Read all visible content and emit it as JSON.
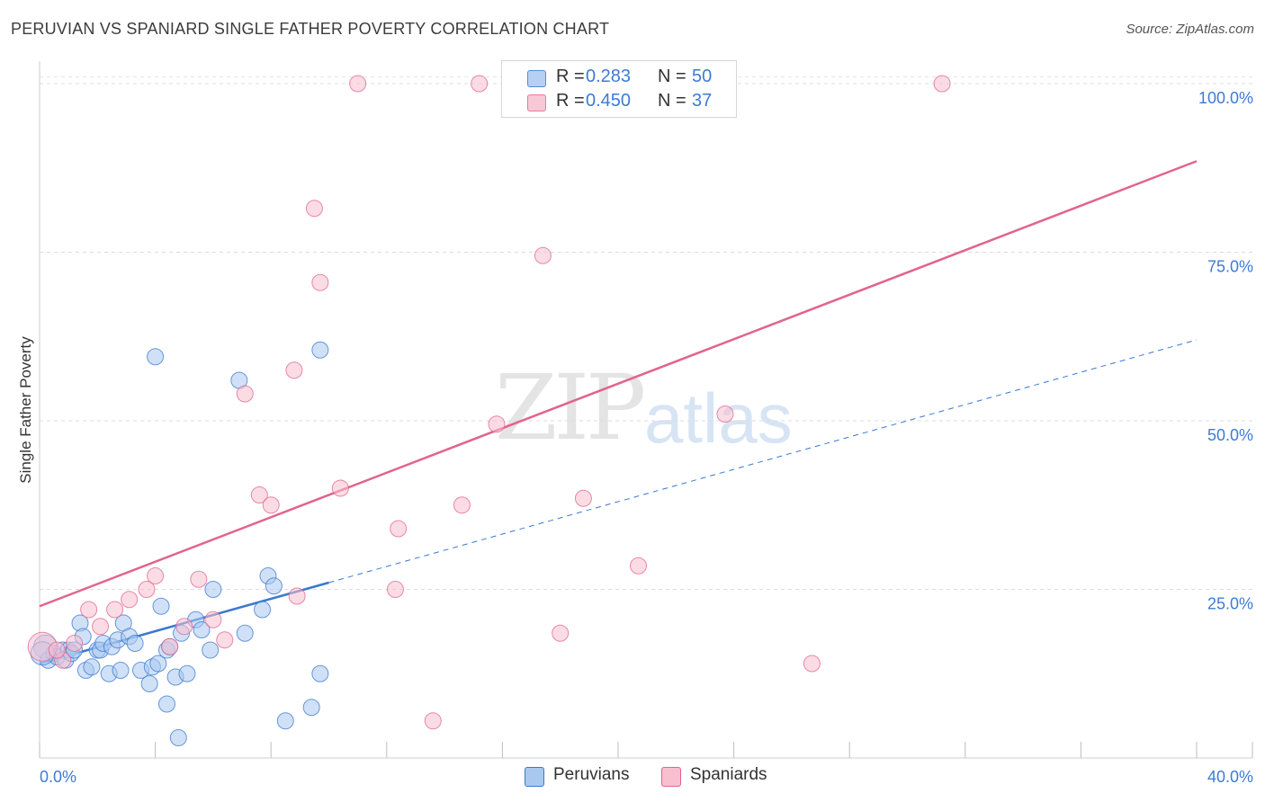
{
  "title": "PERUVIAN VS SPANIARD SINGLE FATHER POVERTY CORRELATION CHART",
  "source": "Source: ZipAtlas.com",
  "watermark": {
    "zip": "ZIP",
    "atlas": "atlas"
  },
  "legend_top": {
    "rows": [
      {
        "r_label": "R =",
        "r_value": "0.283",
        "n_label": "N =",
        "n_value": "50",
        "color": "#a9c8f0"
      },
      {
        "r_label": "R =",
        "r_value": "0.450",
        "n_label": "N =",
        "n_value": "37",
        "color": "#f7bfd0"
      }
    ]
  },
  "legend_bottom": [
    {
      "label": "Peruvians",
      "color": "#a9c8f0"
    },
    {
      "label": "Spaniards",
      "color": "#f7bfd0"
    }
  ],
  "chart_data": {
    "type": "scatter",
    "title": "PERUVIAN VS SPANIARD SINGLE FATHER POVERTY CORRELATION CHART",
    "xlabel": "",
    "ylabel": "Single Father Poverty",
    "xlim": [
      0,
      40
    ],
    "ylim": [
      0,
      102
    ],
    "x_tick_labels": [
      "0.0%",
      "40.0%"
    ],
    "y_ticks": [
      25,
      50,
      75,
      100
    ],
    "y_tick_labels": [
      "25.0%",
      "50.0%",
      "75.0%",
      "100.0%"
    ],
    "grid": true,
    "series": [
      {
        "name": "Peruvians",
        "color": "#3a78d0",
        "fill": "#a9c8f0",
        "points": [
          [
            0.2,
            16.5
          ],
          [
            0.3,
            14.5
          ],
          [
            0.5,
            15.5
          ],
          [
            0.6,
            15
          ],
          [
            0.8,
            16
          ],
          [
            0.9,
            14.5
          ],
          [
            1.0,
            16
          ],
          [
            1.1,
            15.5
          ],
          [
            1.2,
            16
          ],
          [
            1.4,
            20
          ],
          [
            1.5,
            18
          ],
          [
            1.6,
            13
          ],
          [
            1.8,
            13.5
          ],
          [
            2.0,
            16
          ],
          [
            2.1,
            16
          ],
          [
            2.2,
            17
          ],
          [
            2.4,
            12.5
          ],
          [
            2.5,
            16.5
          ],
          [
            2.7,
            17.5
          ],
          [
            2.8,
            13
          ],
          [
            2.9,
            20
          ],
          [
            3.1,
            18
          ],
          [
            3.3,
            17
          ],
          [
            3.5,
            13
          ],
          [
            3.8,
            11
          ],
          [
            3.9,
            13.5
          ],
          [
            4.1,
            14
          ],
          [
            4.2,
            22.5
          ],
          [
            4.4,
            16
          ],
          [
            4.5,
            16.5
          ],
          [
            4.7,
            12
          ],
          [
            4.9,
            18.5
          ],
          [
            5.1,
            12.5
          ],
          [
            5.4,
            20.5
          ],
          [
            5.6,
            19
          ],
          [
            5.9,
            16
          ],
          [
            4.0,
            59.5
          ],
          [
            6.9,
            56
          ],
          [
            9.7,
            60.5
          ],
          [
            7.9,
            27
          ],
          [
            8.1,
            25.5
          ],
          [
            7.7,
            22
          ],
          [
            7.1,
            18.5
          ],
          [
            6.0,
            25
          ],
          [
            9.7,
            12.5
          ],
          [
            9.4,
            7.5
          ],
          [
            8.5,
            5.5
          ],
          [
            4.4,
            8
          ],
          [
            4.8,
            3
          ],
          [
            0.1,
            15.5
          ]
        ],
        "trend": {
          "x": [
            0,
            10.0
          ],
          "y": [
            14,
            26
          ]
        },
        "trend_extended": {
          "x": [
            10.0,
            40
          ],
          "y": [
            26,
            62
          ]
        }
      },
      {
        "name": "Spaniards",
        "color": "#e2648e",
        "fill": "#f7bfd0",
        "points": [
          [
            0.1,
            16.5
          ],
          [
            0.8,
            14.5
          ],
          [
            1.2,
            17
          ],
          [
            1.7,
            22
          ],
          [
            2.1,
            19.5
          ],
          [
            2.6,
            22
          ],
          [
            3.1,
            23.5
          ],
          [
            3.7,
            25
          ],
          [
            4.0,
            27
          ],
          [
            4.5,
            16.5
          ],
          [
            5.0,
            19.5
          ],
          [
            5.5,
            26.5
          ],
          [
            6.0,
            20.5
          ],
          [
            6.4,
            17.5
          ],
          [
            7.1,
            54
          ],
          [
            7.6,
            39
          ],
          [
            8.0,
            37.5
          ],
          [
            8.8,
            57.5
          ],
          [
            8.9,
            24
          ],
          [
            9.5,
            81.5
          ],
          [
            9.7,
            70.5
          ],
          [
            10.4,
            40
          ],
          [
            11.0,
            100
          ],
          [
            12.3,
            25
          ],
          [
            12.4,
            34
          ],
          [
            13.6,
            5.5
          ],
          [
            14.6,
            37.5
          ],
          [
            15.2,
            100
          ],
          [
            15.8,
            49.5
          ],
          [
            17.4,
            74.5
          ],
          [
            18.0,
            18.5
          ],
          [
            18.8,
            38.5
          ],
          [
            20.7,
            28.5
          ],
          [
            23.7,
            51
          ],
          [
            26.7,
            14
          ],
          [
            31.2,
            100
          ],
          [
            0.6,
            16
          ]
        ],
        "trend": {
          "x": [
            0,
            40
          ],
          "y": [
            22.5,
            88.5
          ]
        }
      }
    ]
  }
}
